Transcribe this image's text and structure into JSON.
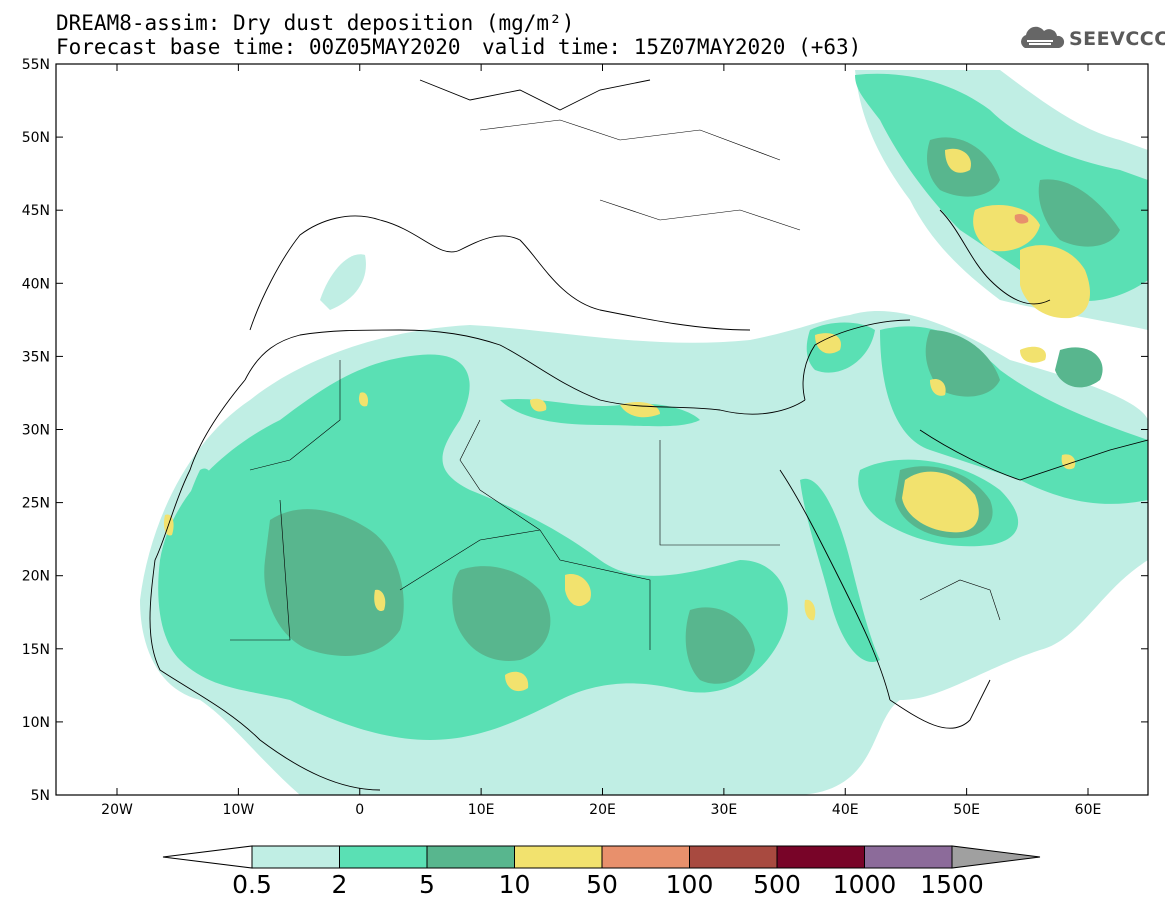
{
  "title": {
    "line1": "DREAM8-assim: Dry dust deposition (mg/m²)",
    "base_time": "Forecast base time: 00Z05MAY2020",
    "valid_time": "valid time: 15Z07MAY2020 (+63)"
  },
  "logo": {
    "text": "SEEVCCC",
    "icon": "cloud-icon"
  },
  "axes": {
    "lat_labels": [
      "55N",
      "50N",
      "45N",
      "40N",
      "35N",
      "30N",
      "25N",
      "20N",
      "15N",
      "10N",
      "5N"
    ],
    "lon_labels": [
      "20W",
      "10W",
      "0",
      "10E",
      "20E",
      "30E",
      "40E",
      "50E",
      "60E"
    ]
  },
  "colorbar": {
    "labels": [
      "0.5",
      "2",
      "5",
      "10",
      "50",
      "100",
      "500",
      "1000",
      "1500"
    ],
    "colors": [
      "#c0eee4",
      "#5ae0b4",
      "#58b68e",
      "#f2e26e",
      "#e8906c",
      "#a84a40",
      "#780428",
      "#8c6b9a",
      "#a0a0a0"
    ]
  }
}
